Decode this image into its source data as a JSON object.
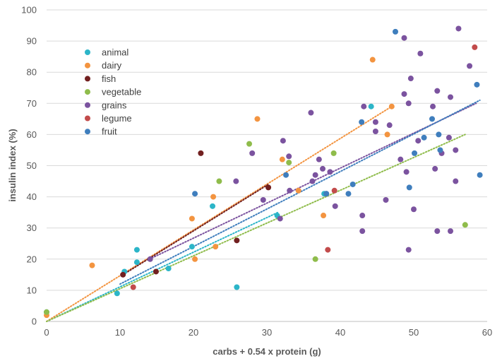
{
  "chart_data": {
    "type": "scatter",
    "title": "",
    "xlabel": "carbs + 0.54 x protein (g)",
    "ylabel": "insulin index (%)",
    "xlim": [
      0,
      60
    ],
    "ylim": [
      0,
      100
    ],
    "xticks": [
      "0",
      "10",
      "20",
      "30",
      "40",
      "50",
      "60"
    ],
    "yticks": [
      "0",
      "10",
      "20",
      "30",
      "40",
      "50",
      "60",
      "70",
      "80",
      "90",
      "100"
    ],
    "grid": "horizontal",
    "legend_position": "top-left",
    "series": [
      {
        "name": "animal",
        "color": "#2cb5c8",
        "points": [
          [
            0,
            3
          ],
          [
            9.6,
            9
          ],
          [
            10.6,
            16
          ],
          [
            12.3,
            23
          ],
          [
            12.3,
            19
          ],
          [
            16.6,
            17
          ],
          [
            19.8,
            24
          ],
          [
            22.6,
            37
          ],
          [
            25.9,
            11
          ],
          [
            31.4,
            34
          ],
          [
            37.8,
            41
          ],
          [
            44.2,
            69
          ]
        ],
        "trend": [
          [
            0,
            0
          ],
          [
            31.5,
            35
          ]
        ]
      },
      {
        "name": "dairy",
        "color": "#f39440",
        "points": [
          [
            0,
            2
          ],
          [
            6.2,
            18
          ],
          [
            19.8,
            33
          ],
          [
            20.2,
            20
          ],
          [
            22.7,
            40
          ],
          [
            23,
            24
          ],
          [
            28.7,
            65
          ],
          [
            32.1,
            52
          ],
          [
            34.3,
            42
          ],
          [
            37.7,
            34
          ],
          [
            44.4,
            84
          ],
          [
            46.4,
            60
          ],
          [
            47,
            69
          ]
        ],
        "trend": [
          [
            0,
            0
          ],
          [
            47,
            69
          ]
        ]
      },
      {
        "name": "fish",
        "color": "#722020",
        "points": [
          [
            10.4,
            15
          ],
          [
            14.9,
            16
          ],
          [
            21,
            54
          ],
          [
            25.9,
            26
          ],
          [
            30.2,
            43
          ]
        ],
        "trend": [
          [
            10.4,
            15
          ],
          [
            30.2,
            44
          ]
        ]
      },
      {
        "name": "vegetable",
        "color": "#8fbc4b",
        "points": [
          [
            0,
            3
          ],
          [
            23.5,
            45
          ],
          [
            27.6,
            57
          ],
          [
            33,
            51
          ],
          [
            36.6,
            20
          ],
          [
            39.1,
            54
          ],
          [
            57,
            31
          ]
        ],
        "trend": [
          [
            0,
            0
          ],
          [
            57,
            60
          ]
        ]
      },
      {
        "name": "grains",
        "color": "#7b539f",
        "points": [
          [
            14.1,
            20
          ],
          [
            25.8,
            45
          ],
          [
            28,
            54
          ],
          [
            29.5,
            39
          ],
          [
            32.2,
            58
          ],
          [
            31.8,
            33
          ],
          [
            33,
            53
          ],
          [
            33.1,
            42
          ],
          [
            36,
            67
          ],
          [
            36.2,
            45
          ],
          [
            36.6,
            47
          ],
          [
            37.1,
            52
          ],
          [
            37.6,
            49
          ],
          [
            38.1,
            41
          ],
          [
            38.6,
            48
          ],
          [
            39.3,
            37
          ],
          [
            43,
            34
          ],
          [
            43,
            29
          ],
          [
            43.2,
            69
          ],
          [
            44.8,
            64
          ],
          [
            44.8,
            61
          ],
          [
            46.2,
            39
          ],
          [
            46.7,
            63
          ],
          [
            48.2,
            52
          ],
          [
            48.7,
            91
          ],
          [
            48.7,
            73
          ],
          [
            49,
            48
          ],
          [
            49.3,
            70
          ],
          [
            49.3,
            23
          ],
          [
            49.6,
            78
          ],
          [
            50,
            36
          ],
          [
            50.6,
            58
          ],
          [
            50.9,
            86
          ],
          [
            52.6,
            69
          ],
          [
            52.9,
            49
          ],
          [
            53.2,
            74
          ],
          [
            53.2,
            29
          ],
          [
            53.8,
            54
          ],
          [
            54.8,
            59
          ],
          [
            55,
            72
          ],
          [
            55,
            29
          ],
          [
            55.7,
            55
          ],
          [
            55.7,
            45
          ],
          [
            56.1,
            94
          ],
          [
            57.6,
            82
          ]
        ],
        "trend": [
          [
            14,
            20
          ],
          [
            58.5,
            70
          ]
        ]
      },
      {
        "name": "legume",
        "color": "#c24b4b",
        "points": [
          [
            11.8,
            11
          ],
          [
            38.3,
            23
          ],
          [
            39.2,
            42
          ],
          [
            58.3,
            88
          ]
        ],
        "trend": []
      },
      {
        "name": "fruit",
        "color": "#3f7ebd",
        "points": [
          [
            20.2,
            41
          ],
          [
            32.6,
            47
          ],
          [
            38.1,
            41
          ],
          [
            41.1,
            41
          ],
          [
            41.7,
            44
          ],
          [
            42.9,
            64
          ],
          [
            47.5,
            93
          ],
          [
            49.4,
            43
          ],
          [
            50.1,
            54
          ],
          [
            51.4,
            59
          ],
          [
            52.5,
            65
          ],
          [
            53.4,
            60
          ],
          [
            53.6,
            55
          ],
          [
            58.6,
            76
          ],
          [
            59,
            47
          ]
        ],
        "trend": [
          [
            10,
            12
          ],
          [
            59,
            71
          ]
        ]
      }
    ]
  }
}
